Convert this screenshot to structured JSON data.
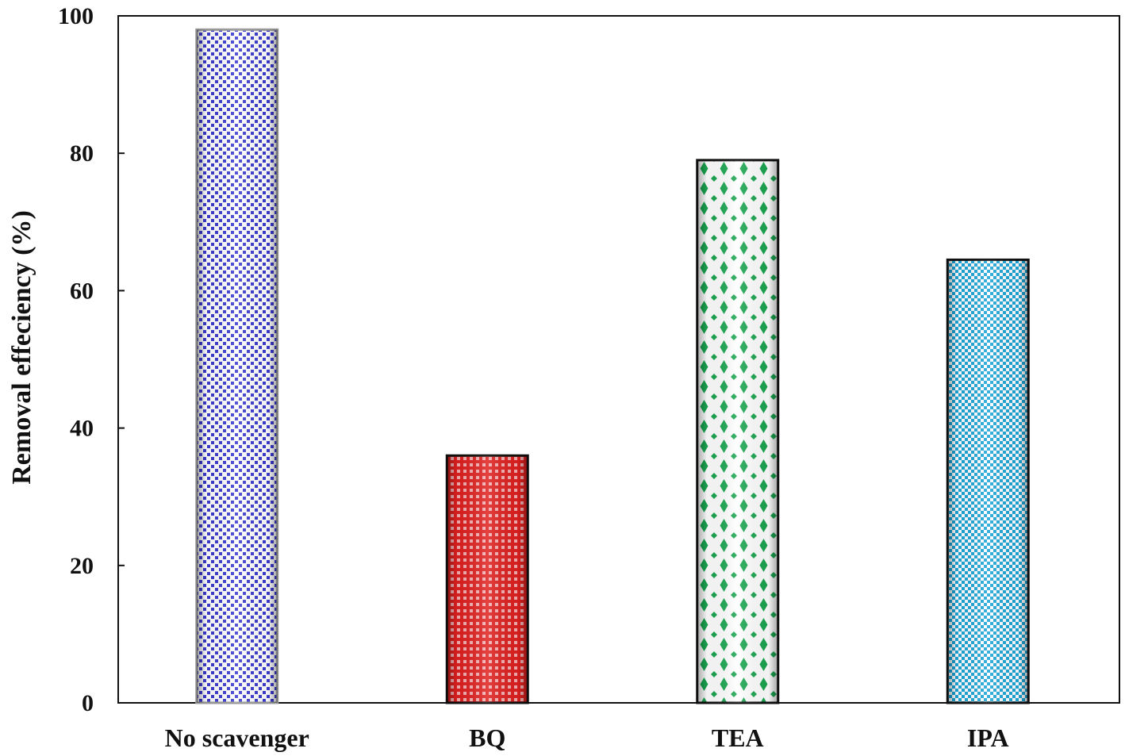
{
  "chart_data": {
    "type": "bar",
    "categories": [
      "No scavenger",
      "BQ",
      "TEA",
      "IPA"
    ],
    "values": [
      98,
      36,
      79,
      64.5
    ],
    "title": "",
    "xlabel": "",
    "ylabel": "Removal effeciency (%)",
    "ylim": [
      0,
      100
    ],
    "yticks": [
      0,
      20,
      40,
      60,
      80,
      100
    ],
    "grid": false,
    "colors": [
      "#3a3ad0",
      "#e02020",
      "#1aa650",
      "#1aa6d8"
    ],
    "patterns": [
      "dots",
      "checker",
      "diamond-dots",
      "checker"
    ],
    "bar_outline": [
      "#9a9a9a",
      "#111111",
      "#111111",
      "#111111"
    ]
  }
}
